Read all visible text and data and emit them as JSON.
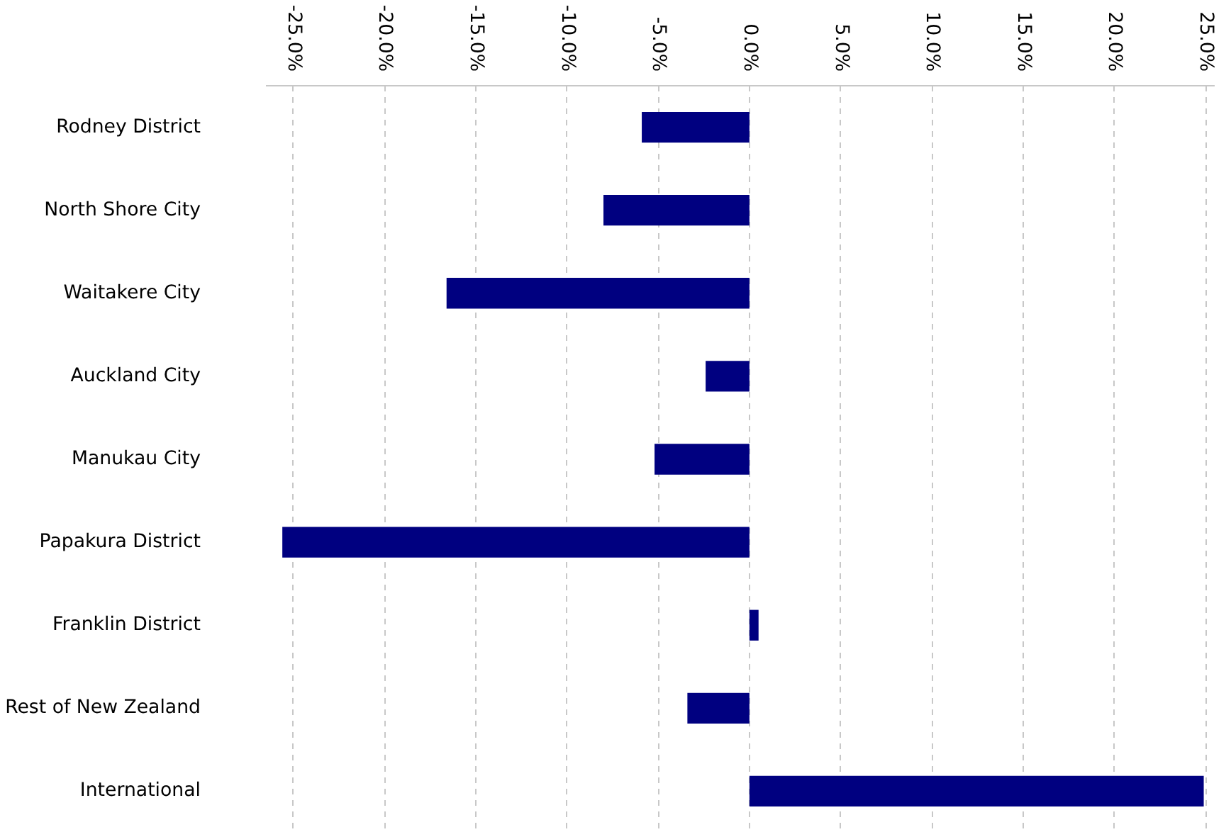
{
  "chart_data": {
    "type": "bar",
    "orientation": "horizontal",
    "categories": [
      "Rodney District",
      "North Shore City",
      "Waitakere City",
      "Auckland City",
      "Manukau City",
      "Papakura District",
      "Franklin District",
      "Rest of New Zealand",
      "International"
    ],
    "values": [
      -5.9,
      -8.0,
      -16.6,
      -2.4,
      -5.2,
      -25.6,
      0.5,
      -3.4,
      24.9
    ],
    "color": "#000080",
    "xlim": [
      -26.5,
      25.5
    ],
    "xticks": [
      {
        "value": -25,
        "label": "-25.0%"
      },
      {
        "value": -20,
        "label": "-20.0%"
      },
      {
        "value": -15,
        "label": "-15.0%"
      },
      {
        "value": -10,
        "label": "-10.0%"
      },
      {
        "value": -5,
        "label": "-5.0%"
      },
      {
        "value": 0,
        "label": "0.0%"
      },
      {
        "value": 5,
        "label": "5.0%"
      },
      {
        "value": 10,
        "label": "10.0%"
      },
      {
        "value": 15,
        "label": "15.0%"
      },
      {
        "value": 20,
        "label": "20.0%"
      },
      {
        "value": 25,
        "label": "25.0%"
      }
    ],
    "grid": "x"
  }
}
